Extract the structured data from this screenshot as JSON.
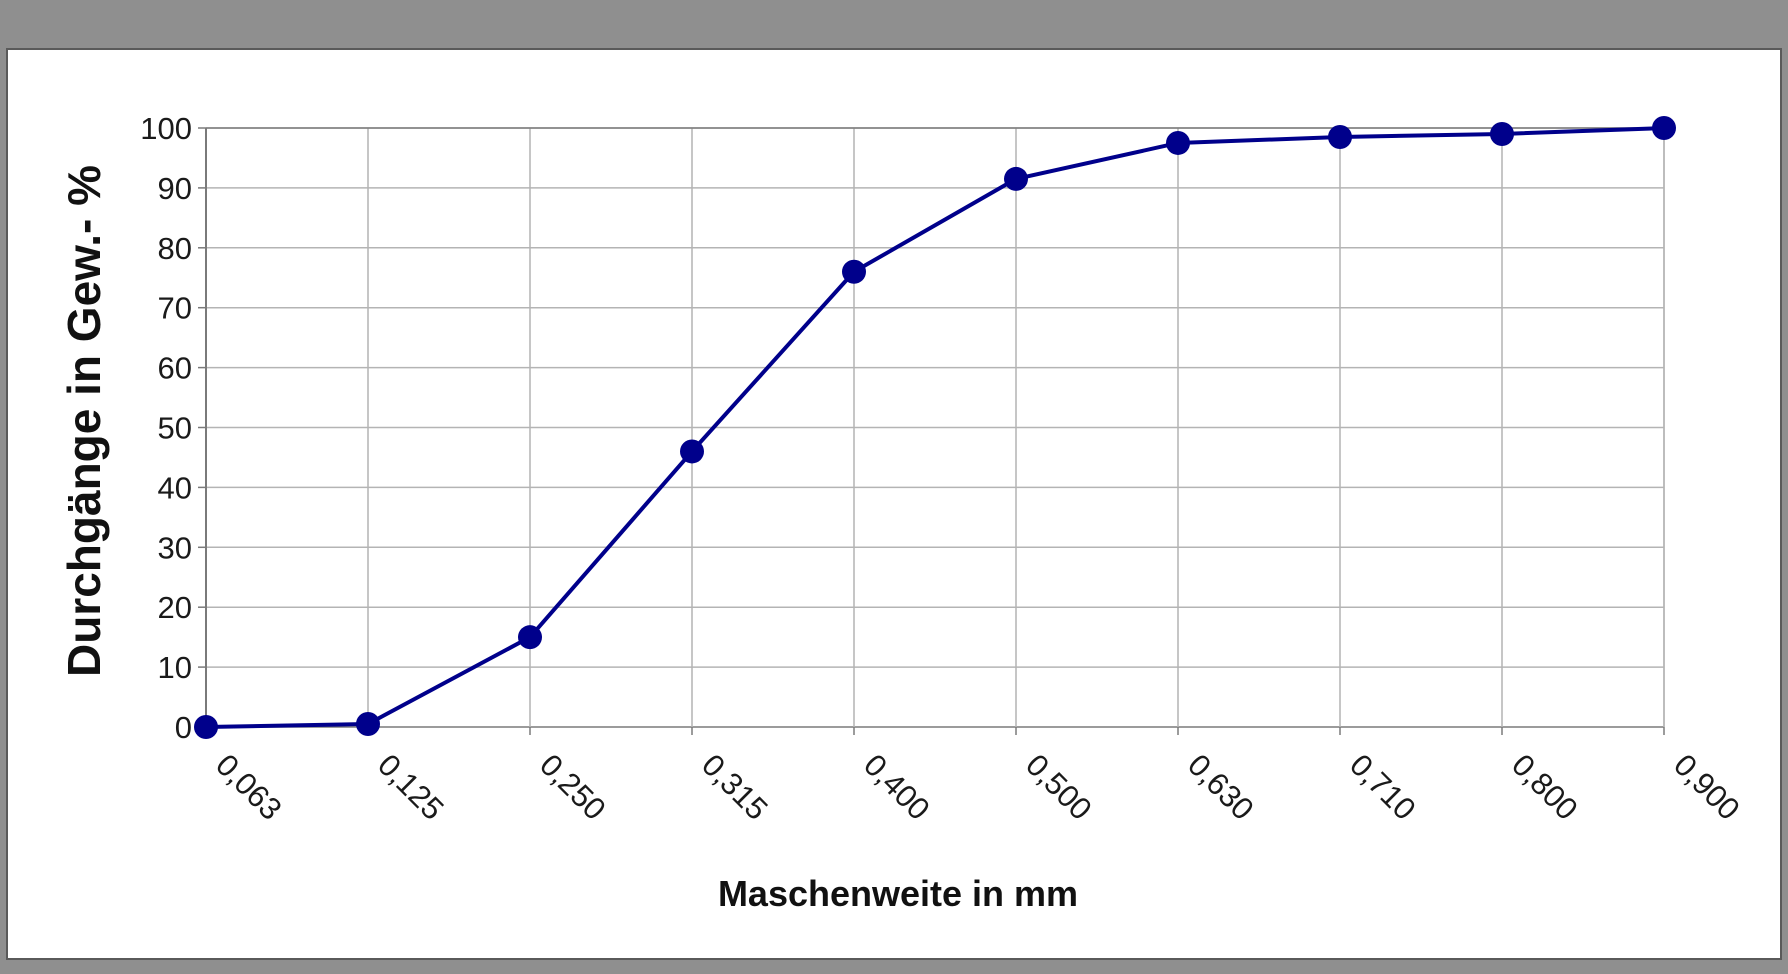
{
  "chart_data": {
    "type": "line",
    "title": "",
    "xlabel": "Maschenweite in mm",
    "ylabel": "Durchgänge in Gew.- %",
    "categories": [
      "0,063",
      "0,125",
      "0,250",
      "0,315",
      "0,400",
      "0,500",
      "0,630",
      "0,710",
      "0,800",
      "0,900"
    ],
    "series": [
      {
        "values": [
          0,
          0.5,
          15,
          46,
          76,
          91.5,
          97.5,
          98.5,
          99,
          100
        ]
      }
    ],
    "ylim": [
      0,
      100
    ],
    "yticks": [
      0,
      10,
      20,
      30,
      40,
      50,
      60,
      70,
      80,
      90,
      100
    ],
    "grid": true,
    "legend": "none",
    "colors": {
      "series": "#00008b",
      "grid": "#b4b4b4",
      "axis": "#7a7a7a",
      "frame": "#8f8f8f"
    }
  }
}
